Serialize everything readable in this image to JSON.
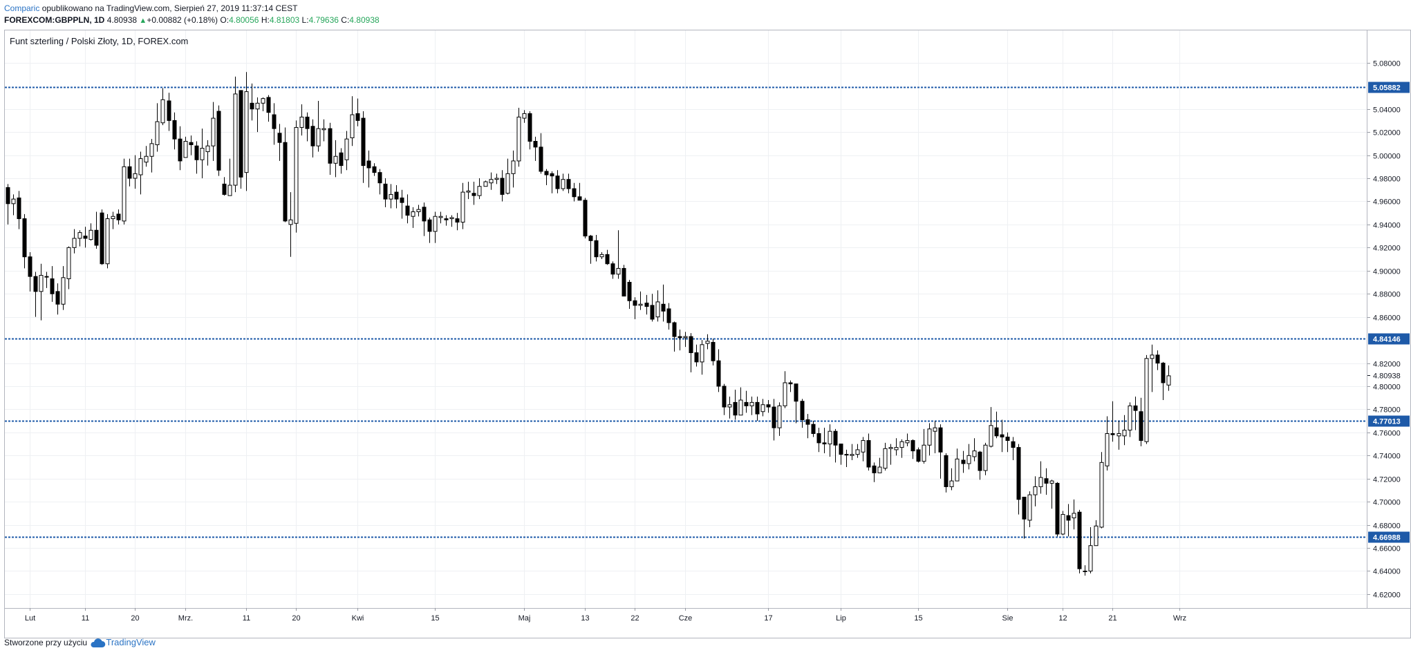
{
  "header": {
    "author": "Comparic",
    "published": "opublikowano na TradingView.com, Sierpień 27, 2019 11:37:14 CEST",
    "symbol": "FOREXCOM:GBPPLN, 1D",
    "last": "4.80938",
    "change": "+0.00882 (+0.18%)",
    "open_label": "O:",
    "open": "4.80056",
    "high_label": "H:",
    "high": "4.81803",
    "low_label": "L:",
    "low": "4.79636",
    "close_label": "C:",
    "close": "4.80938",
    "up_arrow_icon": "triangle-up-icon"
  },
  "footer": {
    "created": "Stworzone przy użyciu",
    "brand": "TradingView",
    "logo_icon": "cloud-icon"
  },
  "chart_data": {
    "type": "candlestick",
    "title": "Funt szterling / Polski Złoty, 1D, FOREX.com",
    "ylim": [
      4.608,
      5.108
    ],
    "y_ticks": [
      "5.08000",
      "5.04000",
      "5.02000",
      "5.00000",
      "4.98000",
      "4.96000",
      "4.94000",
      "4.92000",
      "4.90000",
      "4.88000",
      "4.86000",
      "4.82000",
      "4.80000",
      "4.78000",
      "4.76000",
      "4.74000",
      "4.72000",
      "4.70000",
      "4.68000",
      "4.66000",
      "4.64000",
      "4.62000"
    ],
    "x_labels": [
      "Lut",
      "11",
      "20",
      "Mrz.",
      "11",
      "20",
      "Kwi",
      "15",
      "Maj",
      "13",
      "22",
      "Cze",
      "17",
      "Lip",
      "15",
      "Sie",
      "12",
      "21",
      "Wrz"
    ],
    "x_label_bar_index": [
      4,
      14,
      23,
      32,
      43,
      52,
      63,
      77,
      93,
      104,
      113,
      122,
      137,
      150,
      164,
      180,
      190,
      199,
      211
    ],
    "horizontal_levels": [
      {
        "value": 5.05882,
        "label": "5.05882"
      },
      {
        "value": 4.84146,
        "label": "4.84146"
      },
      {
        "value": 4.77013,
        "label": "4.77013"
      },
      {
        "value": 4.66988,
        "label": "4.66988"
      }
    ],
    "current_price": {
      "value": 4.80938,
      "label": "4.80938"
    },
    "level_color": "#1e5aa8",
    "up_color": "#ffffff",
    "down_color": "#000000",
    "candles": [
      [
        4.972,
        4.958,
        4.975,
        4.94
      ],
      [
        4.958,
        4.962,
        4.966,
        4.948
      ],
      [
        4.963,
        4.945,
        4.969,
        4.936
      ],
      [
        4.945,
        4.912,
        4.949,
        4.902
      ],
      [
        4.912,
        4.895,
        4.916,
        4.882
      ],
      [
        4.895,
        4.882,
        4.899,
        4.86
      ],
      [
        4.882,
        4.896,
        4.906,
        4.857
      ],
      [
        4.895,
        4.895,
        4.899,
        4.885
      ],
      [
        4.893,
        4.88,
        4.904,
        4.873
      ],
      [
        4.882,
        4.871,
        4.889,
        4.862
      ],
      [
        4.871,
        4.894,
        4.904,
        4.866
      ],
      [
        4.893,
        4.92,
        4.921,
        4.884
      ],
      [
        4.92,
        4.928,
        4.936,
        4.915
      ],
      [
        4.928,
        4.933,
        4.935,
        4.921
      ],
      [
        4.93,
        4.928,
        4.938,
        4.92
      ],
      [
        4.927,
        4.935,
        4.941,
        4.926
      ],
      [
        4.935,
        4.922,
        4.951,
        4.919
      ],
      [
        4.95,
        4.906,
        4.953,
        4.905
      ],
      [
        4.906,
        4.945,
        4.949,
        4.902
      ],
      [
        4.945,
        4.947,
        4.951,
        4.936
      ],
      [
        4.949,
        4.944,
        4.953,
        4.94
      ],
      [
        4.943,
        4.99,
        4.997,
        4.94
      ],
      [
        4.99,
        4.98,
        4.997,
        4.973
      ],
      [
        4.98,
        4.984,
        5.0,
        4.971
      ],
      [
        4.983,
        4.997,
        5.003,
        4.966
      ],
      [
        4.994,
        4.999,
        5.008,
        4.99
      ],
      [
        4.999,
        5.01,
        5.014,
        4.985
      ],
      [
        5.009,
        5.029,
        5.045,
        5.003
      ],
      [
        5.028,
        5.048,
        5.058,
        5.026
      ],
      [
        5.047,
        5.03,
        5.054,
        5.021
      ],
      [
        5.03,
        5.014,
        5.037,
        5.005
      ],
      [
        5.014,
        4.995,
        5.025,
        4.987
      ],
      [
        4.998,
        5.012,
        5.016,
        5.005
      ],
      [
        5.011,
        5.009,
        5.017,
        5.0
      ],
      [
        5.008,
        4.996,
        5.012,
        4.984
      ],
      [
        4.996,
        5.006,
        5.023,
        4.98
      ],
      [
        5.003,
        5.008,
        5.013,
        4.991
      ],
      [
        5.008,
        5.032,
        5.046,
        4.995
      ],
      [
        5.038,
        4.987,
        5.043,
        4.982
      ],
      [
        4.975,
        4.966,
        4.981,
        4.965
      ],
      [
        4.965,
        4.974,
        4.997,
        4.965
      ],
      [
        4.974,
        5.053,
        5.068,
        4.968
      ],
      [
        5.056,
        4.981,
        5.056,
        4.971
      ],
      [
        4.985,
        5.055,
        5.072,
        4.969
      ],
      [
        5.045,
        5.04,
        5.062,
        5.03
      ],
      [
        5.04,
        5.045,
        5.05,
        5.02
      ],
      [
        5.045,
        5.049,
        5.05,
        5.038
      ],
      [
        5.05,
        5.037,
        5.052,
        5.029
      ],
      [
        5.035,
        5.023,
        5.045,
        5.009
      ],
      [
        5.019,
        5.011,
        5.027,
        4.995
      ],
      [
        5.011,
        4.943,
        5.024,
        4.942
      ],
      [
        4.94,
        4.944,
        4.968,
        4.912
      ],
      [
        4.941,
        5.024,
        5.03,
        4.933
      ],
      [
        5.024,
        5.033,
        5.044,
        5.017
      ],
      [
        5.033,
        5.023,
        5.037,
        5.012
      ],
      [
        5.025,
        5.008,
        5.031,
        4.998
      ],
      [
        5.008,
        5.023,
        5.047,
        5.003
      ],
      [
        5.022,
        5.023,
        5.031,
        5.012
      ],
      [
        5.023,
        4.993,
        5.028,
        4.983
      ],
      [
        4.993,
        4.999,
        5.013,
        4.981
      ],
      [
        5.002,
        4.991,
        5.006,
        4.984
      ],
      [
        4.996,
        5.014,
        5.021,
        4.987
      ],
      [
        5.015,
        5.035,
        5.051,
        5.008
      ],
      [
        5.036,
        5.03,
        5.049,
        5.025
      ],
      [
        5.032,
        4.991,
        5.038,
        4.976
      ],
      [
        4.995,
        4.989,
        5.004,
        4.972
      ],
      [
        4.99,
        4.985,
        4.993,
        4.982
      ],
      [
        4.985,
        4.976,
        4.988,
        4.966
      ],
      [
        4.975,
        4.962,
        4.98,
        4.955
      ],
      [
        4.962,
        4.966,
        4.975,
        4.954
      ],
      [
        4.968,
        4.962,
        4.974,
        4.954
      ],
      [
        4.963,
        4.959,
        4.97,
        4.945
      ],
      [
        4.956,
        4.948,
        4.966,
        4.941
      ],
      [
        4.947,
        4.951,
        4.955,
        4.937
      ],
      [
        4.951,
        4.953,
        4.957,
        4.947
      ],
      [
        4.955,
        4.943,
        4.959,
        4.93
      ],
      [
        4.944,
        4.934,
        4.946,
        4.924
      ],
      [
        4.934,
        4.947,
        4.951,
        4.924
      ],
      [
        4.946,
        4.947,
        4.951,
        4.941
      ],
      [
        4.945,
        4.944,
        4.948,
        4.939
      ],
      [
        4.945,
        4.946,
        4.948,
        4.938
      ],
      [
        4.945,
        4.942,
        4.95,
        4.935
      ],
      [
        4.942,
        4.968,
        4.976,
        4.936
      ],
      [
        4.968,
        4.969,
        4.977,
        4.962
      ],
      [
        4.967,
        4.965,
        4.977,
        4.957
      ],
      [
        4.965,
        4.973,
        4.98,
        4.962
      ],
      [
        4.973,
        4.977,
        4.978,
        4.976
      ],
      [
        4.976,
        4.979,
        4.985,
        4.97
      ],
      [
        4.979,
        4.98,
        4.984,
        4.975
      ],
      [
        4.98,
        4.966,
        4.987,
        4.96
      ],
      [
        4.967,
        4.984,
        4.997,
        4.966
      ],
      [
        4.984,
        4.995,
        5.004,
        4.972
      ],
      [
        4.995,
        5.033,
        5.041,
        4.99
      ],
      [
        5.032,
        5.036,
        5.039,
        5.028
      ],
      [
        5.036,
        5.012,
        5.038,
        5.005
      ],
      [
        5.012,
        5.007,
        5.016,
        4.995
      ],
      [
        5.007,
        4.986,
        5.019,
        4.984
      ],
      [
        4.986,
        4.983,
        4.988,
        4.974
      ],
      [
        4.984,
        4.982,
        4.986,
        4.967
      ],
      [
        4.982,
        4.971,
        4.987,
        4.967
      ],
      [
        4.971,
        4.979,
        4.984,
        4.969
      ],
      [
        4.979,
        4.971,
        4.984,
        4.967
      ],
      [
        4.971,
        4.964,
        4.976,
        4.96
      ],
      [
        4.964,
        4.961,
        4.976,
        4.962
      ],
      [
        4.961,
        4.93,
        4.963,
        4.928
      ],
      [
        4.93,
        4.926,
        4.931,
        4.906
      ],
      [
        4.926,
        4.912,
        4.931,
        4.908
      ],
      [
        4.912,
        4.914,
        4.916,
        4.91
      ],
      [
        4.914,
        4.906,
        4.918,
        4.905
      ],
      [
        4.906,
        4.897,
        4.908,
        4.893
      ],
      [
        4.897,
        4.902,
        4.935,
        4.893
      ],
      [
        4.902,
        4.878,
        4.905,
        4.878
      ],
      [
        4.89,
        4.874,
        4.892,
        4.867
      ],
      [
        4.874,
        4.87,
        4.877,
        4.858
      ],
      [
        4.87,
        4.871,
        4.882,
        4.866
      ],
      [
        4.872,
        4.869,
        4.879,
        4.862
      ],
      [
        4.87,
        4.858,
        4.88,
        4.856
      ],
      [
        4.86,
        4.873,
        4.883,
        4.856
      ],
      [
        4.871,
        4.865,
        4.888,
        4.856
      ],
      [
        4.867,
        4.855,
        4.872,
        4.849
      ],
      [
        4.855,
        4.843,
        4.856,
        4.83
      ],
      [
        4.843,
        4.842,
        4.849,
        4.831
      ],
      [
        4.842,
        4.843,
        4.847,
        4.834
      ],
      [
        4.843,
        4.829,
        4.846,
        4.812
      ],
      [
        4.829,
        4.821,
        4.836,
        4.817
      ],
      [
        4.821,
        4.836,
        4.84,
        4.81
      ],
      [
        4.837,
        4.839,
        4.845,
        4.832
      ],
      [
        4.838,
        4.822,
        4.841,
        4.818
      ],
      [
        4.822,
        4.8,
        4.832,
        4.795
      ],
      [
        4.8,
        4.782,
        4.802,
        4.775
      ],
      [
        4.782,
        4.784,
        4.791,
        4.772
      ],
      [
        4.786,
        4.775,
        4.797,
        4.771
      ],
      [
        4.775,
        4.788,
        4.799,
        4.777
      ],
      [
        4.786,
        4.783,
        4.796,
        4.777
      ],
      [
        4.783,
        4.786,
        4.791,
        4.775
      ],
      [
        4.786,
        4.776,
        4.791,
        4.77
      ],
      [
        4.778,
        4.784,
        4.789,
        4.774
      ],
      [
        4.784,
        4.782,
        4.788,
        4.777
      ],
      [
        4.782,
        4.764,
        4.789,
        4.753
      ],
      [
        4.764,
        4.783,
        4.786,
        4.757
      ],
      [
        4.783,
        4.803,
        4.813,
        4.781
      ],
      [
        4.803,
        4.802,
        4.805,
        4.795
      ],
      [
        4.802,
        4.787,
        4.802,
        4.768
      ],
      [
        4.787,
        4.771,
        4.789,
        4.764
      ],
      [
        4.771,
        4.767,
        4.776,
        4.755
      ],
      [
        4.767,
        4.759,
        4.77,
        4.756
      ],
      [
        4.759,
        4.751,
        4.764,
        4.743
      ],
      [
        4.751,
        4.75,
        4.764,
        4.742
      ],
      [
        4.75,
        4.761,
        4.767,
        4.739
      ],
      [
        4.761,
        4.749,
        4.763,
        4.734
      ],
      [
        4.75,
        4.741,
        4.75,
        4.732
      ],
      [
        4.741,
        4.741,
        4.745,
        4.73
      ],
      [
        4.74,
        4.741,
        4.75,
        4.736
      ],
      [
        4.741,
        4.745,
        4.75,
        4.738
      ],
      [
        4.743,
        4.753,
        4.756,
        4.735
      ],
      [
        4.753,
        4.73,
        4.759,
        4.727
      ],
      [
        4.731,
        4.725,
        4.734,
        4.717
      ],
      [
        4.725,
        4.73,
        4.738,
        4.726
      ],
      [
        4.729,
        4.746,
        4.751,
        4.727
      ],
      [
        4.746,
        4.747,
        4.75,
        4.732
      ],
      [
        4.745,
        4.747,
        4.755,
        4.74
      ],
      [
        4.747,
        4.752,
        4.754,
        4.738
      ],
      [
        4.751,
        4.753,
        4.759,
        4.748
      ],
      [
        4.753,
        4.744,
        4.754,
        4.737
      ],
      [
        4.745,
        4.735,
        4.747,
        4.734
      ],
      [
        4.735,
        4.749,
        4.763,
        4.733
      ],
      [
        4.749,
        4.763,
        4.768,
        4.74
      ],
      [
        4.761,
        4.764,
        4.77,
        4.742
      ],
      [
        4.764,
        4.743,
        4.767,
        4.72
      ],
      [
        4.74,
        4.713,
        4.742,
        4.708
      ],
      [
        4.713,
        4.718,
        4.729,
        4.71
      ],
      [
        4.718,
        4.737,
        4.746,
        4.723
      ],
      [
        4.736,
        4.733,
        4.744,
        4.725
      ],
      [
        4.733,
        4.74,
        4.75,
        4.728
      ],
      [
        4.739,
        4.744,
        4.755,
        4.735
      ],
      [
        4.743,
        4.727,
        4.744,
        4.719
      ],
      [
        4.727,
        4.749,
        4.751,
        4.723
      ],
      [
        4.748,
        4.766,
        4.782,
        4.747
      ],
      [
        4.764,
        4.757,
        4.778,
        4.755
      ],
      [
        4.758,
        4.756,
        4.771,
        4.743
      ],
      [
        4.756,
        4.753,
        4.76,
        4.743
      ],
      [
        4.752,
        4.747,
        4.756,
        4.736
      ],
      [
        4.747,
        4.702,
        4.75,
        4.689
      ],
      [
        4.704,
        4.685,
        4.704,
        4.668
      ],
      [
        4.684,
        4.706,
        4.709,
        4.678
      ],
      [
        4.706,
        4.713,
        4.722,
        4.696
      ],
      [
        4.713,
        4.721,
        4.735,
        4.707
      ],
      [
        4.72,
        4.716,
        4.729,
        4.706
      ],
      [
        4.716,
        4.718,
        4.719,
        4.694
      ],
      [
        4.716,
        4.672,
        4.717,
        4.67
      ],
      [
        4.672,
        4.689,
        4.692,
        4.671
      ],
      [
        4.688,
        4.684,
        4.698,
        4.67
      ],
      [
        4.686,
        4.69,
        4.702,
        4.676
      ],
      [
        4.691,
        4.642,
        4.693,
        4.638
      ],
      [
        4.64,
        4.64,
        4.645,
        4.636
      ],
      [
        4.64,
        4.662,
        4.678,
        4.638
      ],
      [
        4.662,
        4.679,
        4.684,
        4.662
      ],
      [
        4.678,
        4.734,
        4.743,
        4.677
      ],
      [
        4.731,
        4.759,
        4.774,
        4.727
      ],
      [
        4.759,
        4.758,
        4.787,
        4.752
      ],
      [
        4.757,
        4.759,
        4.77,
        4.745
      ],
      [
        4.757,
        4.762,
        4.775,
        4.749
      ],
      [
        4.762,
        4.783,
        4.786,
        4.756
      ],
      [
        4.783,
        4.779,
        4.791,
        4.762
      ],
      [
        4.778,
        4.753,
        4.79,
        4.748
      ],
      [
        4.752,
        4.824,
        4.827,
        4.75
      ],
      [
        4.824,
        4.827,
        4.836,
        4.795
      ],
      [
        4.827,
        4.82,
        4.831,
        4.814
      ],
      [
        4.82,
        4.803,
        4.821,
        4.788
      ],
      [
        4.801,
        4.809,
        4.818,
        4.796
      ]
    ]
  }
}
